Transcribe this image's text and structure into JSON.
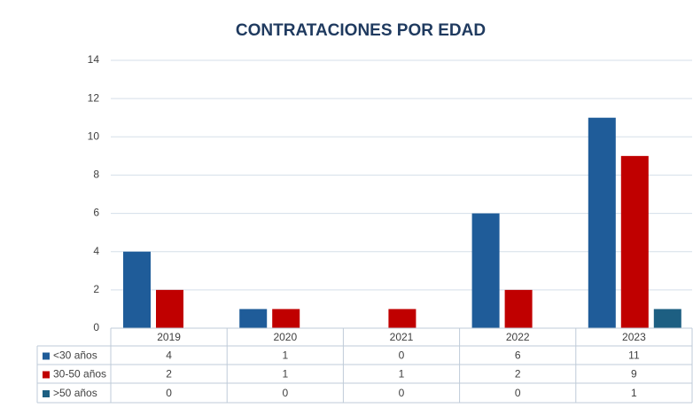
{
  "chart_data": {
    "type": "bar",
    "title": "CONTRATACIONES POR EDAD",
    "categories": [
      "2019",
      "2020",
      "2021",
      "2022",
      "2023"
    ],
    "series": [
      {
        "name": "<30 años",
        "color": "#1f5c99",
        "values": [
          4,
          1,
          0,
          6,
          11
        ]
      },
      {
        "name": "30-50 años",
        "color": "#c00000",
        "values": [
          2,
          1,
          1,
          2,
          9
        ]
      },
      {
        "name": ">50 años",
        "color": "#1d5f82",
        "values": [
          0,
          0,
          0,
          0,
          1
        ]
      }
    ],
    "ylim": [
      0,
      14
    ],
    "yticks": [
      0,
      2,
      4,
      6,
      8,
      10,
      12,
      14
    ],
    "grid": true,
    "data_table": true
  }
}
